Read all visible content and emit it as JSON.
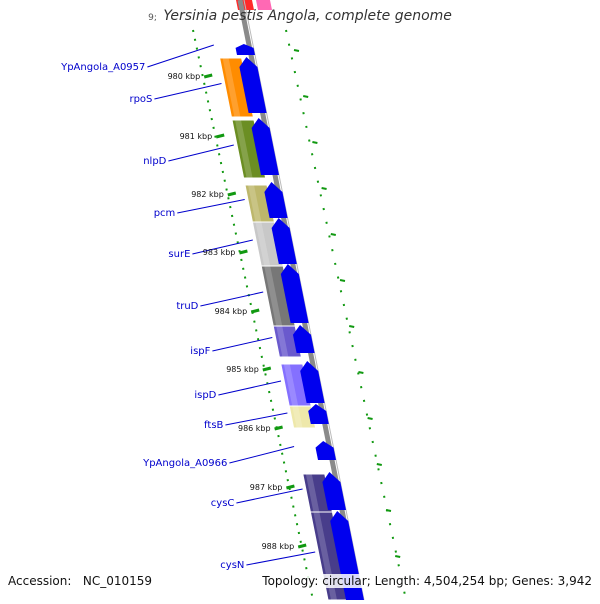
{
  "header": {
    "prefix": "9;",
    "organism": "Yersinia pestis",
    "strain": "Angola, complete genome"
  },
  "footer": {
    "accession_label": "Accession:",
    "accession_value": "NC_010159",
    "topology_label": "Topology:",
    "topology_value": "circular;",
    "length_label": "Length:",
    "length_value": "4,504,254 bp;",
    "genes_label": "Genes:",
    "genes_value": "3,942"
  },
  "scale_ticks": [
    "980 kbp",
    "981 kbp",
    "982 kbp",
    "983 kbp",
    "984 kbp",
    "985 kbp",
    "986 kbp",
    "987 kbp",
    "988 kbp"
  ],
  "genes": [
    "YpAngola_A0957",
    "rpoS",
    "nlpD",
    "pcm",
    "surE",
    "truD",
    "ispF",
    "ispD",
    "ftsB",
    "YpAngola_A0966",
    "cysC",
    "cysN"
  ],
  "colors": {
    "gene_label": "#0000cc",
    "cds_arrow": "#0000ee",
    "tick_green": "#119911",
    "backbone": "#8a8a8a",
    "rpoS": "#ff8c00",
    "nlpD": "#6b8e23",
    "pcm": "#bdb76b",
    "surE": "#c8c8c8",
    "truD": "#777777",
    "ispF": "#6a5acd",
    "ispD": "#8470ff",
    "ftsB": "#eee8aa",
    "cysC": "#483d8b",
    "cysN": "#483d8b",
    "top_red": "#ff2a2a",
    "top_pink": "#ff69b4"
  }
}
